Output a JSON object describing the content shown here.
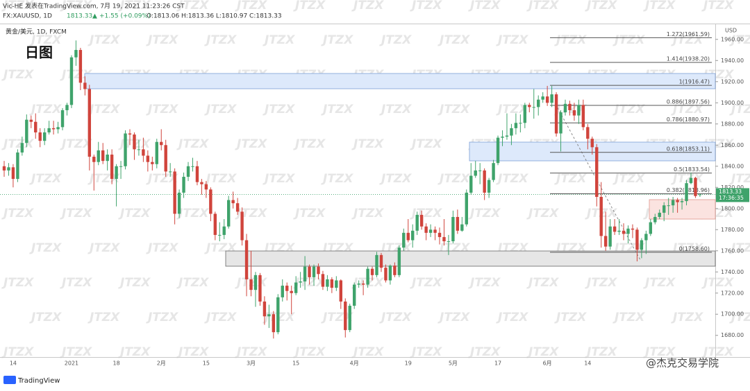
{
  "header": {
    "publisher": "Vic-HE 发表在TradingView.com, 7月 19, 2021 11:23:26 CST",
    "symbol": "FX:XAUUSD, 1D",
    "last": "1813.33",
    "arrow": "▲",
    "change": "+1.55 (+0.09%)",
    "ohlc": "O:1813.06 H:1813.36 L:1810.97 C:1813.33"
  },
  "chart_data": {
    "type": "candlestick",
    "legend_title": "黄金/美元, 1D, FXCM",
    "title": "日图",
    "currency": "USD",
    "watermark": "JTZX",
    "categories": [
      null,
      null,
      "14",
      null,
      null,
      null,
      null,
      null,
      null,
      null,
      null,
      null,
      null,
      null,
      null,
      "2021",
      null,
      null,
      null,
      null,
      null,
      null,
      null,
      null,
      null,
      "18",
      null,
      null,
      null,
      null,
      null,
      null,
      null,
      null,
      null,
      "2月",
      null,
      null,
      null,
      null,
      null,
      null,
      null,
      null,
      null,
      "15",
      null,
      null,
      null,
      null,
      null,
      null,
      null,
      null,
      null,
      "3月",
      null,
      null,
      null,
      null,
      null,
      null,
      null,
      null,
      null,
      "15",
      null,
      null,
      null,
      null,
      null,
      null,
      null,
      null,
      null,
      null,
      null,
      null,
      "4月",
      null,
      null,
      null,
      null,
      null,
      null,
      null,
      null,
      null,
      null,
      null,
      "19",
      null,
      null,
      null,
      null,
      null,
      null,
      null,
      null,
      null,
      "5月",
      null,
      null,
      null,
      null,
      null,
      null,
      null,
      null,
      null,
      "17",
      null,
      null,
      null,
      null,
      null,
      null,
      null,
      null,
      null,
      null,
      "6月",
      null,
      null,
      null,
      null,
      null,
      null,
      null,
      null,
      "14",
      null,
      null,
      null,
      null,
      null,
      null,
      null,
      null,
      null,
      null,
      null,
      null,
      null,
      null,
      null,
      null,
      null,
      null,
      null,
      null,
      null,
      null,
      null,
      null,
      null
    ],
    "open": [
      1840,
      1836,
      1839,
      1828,
      1853,
      1862,
      1884,
      1882,
      1872,
      1864,
      1872,
      1876,
      1875,
      1877,
      1893,
      1898,
      1943,
      1950,
      1919,
      1913,
      1849,
      1844,
      1855,
      1845,
      1851,
      1828,
      1840,
      1840,
      1871,
      1870,
      1856,
      1856,
      1850,
      1844,
      1842,
      1863,
      1860,
      1835,
      1835,
      1795,
      1815,
      1830,
      1840,
      1840,
      1825,
      1823,
      1818,
      1795,
      1775,
      1775,
      1783,
      1808,
      1805,
      1797,
      1770,
      1733,
      1723,
      1737,
      1712,
      1698,
      1700,
      1683,
      1716,
      1727,
      1722,
      1720,
      1730,
      1731,
      1745,
      1735,
      1745,
      1738,
      1726,
      1733,
      1725,
      1732,
      1712,
      1685,
      1708,
      1728,
      1729,
      1728,
      1743,
      1737,
      1756,
      1744,
      1732,
      1746,
      1737,
      1763,
      1777,
      1770,
      1779,
      1794,
      1783,
      1777,
      1780,
      1777,
      1773,
      1769,
      1769,
      1792,
      1779,
      1785,
      1815,
      1831,
      1836,
      1836,
      1815,
      1827,
      1843,
      1867,
      1868,
      1869,
      1876,
      1881,
      1881,
      1898,
      1896,
      1896,
      1903,
      1906,
      1900,
      1908,
      1871,
      1891,
      1899,
      1893,
      1888,
      1898,
      1877,
      1866,
      1858,
      1811,
      1774,
      1764,
      1783,
      1778,
      1779,
      1776,
      1781,
      1780,
      1761,
      1770,
      1776,
      1787,
      1792,
      1796,
      1803,
      1803,
      1808,
      1806,
      1807,
      1824,
      1829,
      1813.06
    ],
    "high": [
      1845,
      1843,
      1842,
      1856,
      1868,
      1889,
      1888,
      1890,
      1876,
      1876,
      1883,
      1883,
      1882,
      1895,
      1900,
      1945,
      1959,
      1952,
      1925,
      1917,
      1851,
      1863,
      1862,
      1856,
      1856,
      1842,
      1845,
      1874,
      1875,
      1872,
      1865,
      1867,
      1855,
      1849,
      1866,
      1875,
      1865,
      1843,
      1838,
      1818,
      1834,
      1844,
      1848,
      1845,
      1828,
      1826,
      1820,
      1797,
      1787,
      1790,
      1812,
      1816,
      1810,
      1801,
      1776,
      1760,
      1740,
      1739,
      1717,
      1709,
      1703,
      1719,
      1733,
      1730,
      1727,
      1736,
      1740,
      1755,
      1747,
      1747,
      1748,
      1741,
      1737,
      1735,
      1736,
      1733,
      1715,
      1710,
      1730,
      1732,
      1732,
      1745,
      1745,
      1759,
      1758,
      1747,
      1747,
      1749,
      1765,
      1781,
      1790,
      1785,
      1797,
      1798,
      1786,
      1785,
      1783,
      1782,
      1790,
      1775,
      1798,
      1799,
      1792,
      1818,
      1843,
      1845,
      1843,
      1838,
      1829,
      1846,
      1869,
      1874,
      1890,
      1880,
      1890,
      1889,
      1900,
      1900,
      1913,
      1907,
      1910,
      1916,
      1916,
      1910,
      1893,
      1903,
      1902,
      1900,
      1903,
      1903,
      1880,
      1868,
      1861,
      1825,
      1797,
      1790,
      1790,
      1790,
      1786,
      1784,
      1785,
      1782,
      1772,
      1779,
      1790,
      1795,
      1799,
      1806,
      1810,
      1811,
      1810,
      1810,
      1827,
      1834,
      1830,
      1813.36
    ],
    "low": [
      1830,
      1831,
      1820,
      1825,
      1850,
      1858,
      1876,
      1866,
      1858,
      1860,
      1870,
      1870,
      1871,
      1874,
      1888,
      1895,
      1935,
      1912,
      1907,
      1836,
      1817,
      1841,
      1842,
      1836,
      1823,
      1802,
      1828,
      1837,
      1860,
      1846,
      1850,
      1844,
      1835,
      1836,
      1838,
      1855,
      1830,
      1830,
      1785,
      1791,
      1810,
      1826,
      1835,
      1822,
      1813,
      1810,
      1788,
      1770,
      1769,
      1771,
      1781,
      1800,
      1794,
      1765,
      1717,
      1717,
      1707,
      1708,
      1690,
      1687,
      1677,
      1681,
      1712,
      1713,
      1700,
      1718,
      1725,
      1723,
      1728,
      1727,
      1733,
      1723,
      1722,
      1720,
      1722,
      1705,
      1678,
      1683,
      1705,
      1725,
      1718,
      1725,
      1732,
      1735,
      1740,
      1730,
      1728,
      1735,
      1735,
      1760,
      1768,
      1763,
      1775,
      1780,
      1770,
      1773,
      1770,
      1766,
      1765,
      1756,
      1767,
      1776,
      1778,
      1783,
      1813,
      1829,
      1823,
      1808,
      1810,
      1825,
      1841,
      1859,
      1865,
      1860,
      1870,
      1872,
      1876,
      1891,
      1885,
      1888,
      1900,
      1897,
      1896,
      1868,
      1854,
      1888,
      1888,
      1883,
      1880,
      1874,
      1856,
      1851,
      1802,
      1763,
      1760,
      1761,
      1775,
      1775,
      1770,
      1767,
      1772,
      1750,
      1753,
      1757,
      1774,
      1785,
      1790,
      1788,
      1794,
      1796,
      1796,
      1799,
      1803,
      1823,
      1810,
      1810.97
    ],
    "close": [
      1836,
      1839,
      1828,
      1853,
      1862,
      1884,
      1882,
      1872,
      1864,
      1872,
      1876,
      1875,
      1877,
      1893,
      1898,
      1943,
      1950,
      1919,
      1913,
      1849,
      1844,
      1855,
      1845,
      1851,
      1828,
      1840,
      1840,
      1871,
      1870,
      1856,
      1856,
      1850,
      1844,
      1842,
      1863,
      1860,
      1835,
      1835,
      1795,
      1815,
      1830,
      1840,
      1840,
      1825,
      1823,
      1818,
      1795,
      1775,
      1775,
      1783,
      1808,
      1805,
      1797,
      1770,
      1733,
      1723,
      1737,
      1712,
      1698,
      1700,
      1683,
      1716,
      1727,
      1722,
      1720,
      1730,
      1731,
      1745,
      1735,
      1745,
      1738,
      1726,
      1733,
      1725,
      1732,
      1712,
      1685,
      1708,
      1728,
      1729,
      1728,
      1743,
      1737,
      1756,
      1744,
      1732,
      1746,
      1737,
      1763,
      1777,
      1770,
      1779,
      1794,
      1783,
      1777,
      1780,
      1777,
      1773,
      1769,
      1769,
      1792,
      1779,
      1785,
      1815,
      1831,
      1836,
      1836,
      1815,
      1827,
      1843,
      1867,
      1868,
      1869,
      1876,
      1881,
      1881,
      1898,
      1896,
      1896,
      1903,
      1906,
      1900,
      1908,
      1871,
      1891,
      1899,
      1893,
      1888,
      1898,
      1877,
      1866,
      1858,
      1811,
      1774,
      1764,
      1783,
      1778,
      1779,
      1776,
      1781,
      1780,
      1761,
      1770,
      1776,
      1787,
      1792,
      1796,
      1803,
      1803,
      1808,
      1806,
      1807,
      1824,
      1829,
      1811.78,
      1813.33
    ],
    "up_color": "#3fa36b",
    "down_color": "#d0443c",
    "ylim": [
      1659.5,
      1974.3
    ],
    "yticks": [
      {
        "value": 1680,
        "label": "1680.00"
      },
      {
        "value": 1700,
        "label": "1700.00"
      },
      {
        "value": 1720,
        "label": "1720.00"
      },
      {
        "value": 1740,
        "label": "1740.00"
      },
      {
        "value": 1760,
        "label": "1760.00"
      },
      {
        "value": 1780,
        "label": "1780.00"
      },
      {
        "value": 1800,
        "label": "1800.00"
      },
      {
        "value": 1820,
        "label": "1820.00"
      },
      {
        "value": 1840,
        "label": "1840.00"
      },
      {
        "value": 1860,
        "label": "1860.00"
      },
      {
        "value": 1880,
        "label": "1880.00"
      },
      {
        "value": 1900,
        "label": "1900.00"
      },
      {
        "value": 1920,
        "label": "1920.00"
      },
      {
        "value": 1940,
        "label": "1940.00"
      },
      {
        "value": 1960,
        "label": "1960.00"
      }
    ],
    "fib_levels": [
      {
        "value": 1961.59,
        "label": "1.272(1961.59)"
      },
      {
        "value": 1938.2,
        "label": "1.414(1938.20)"
      },
      {
        "value": 1916.47,
        "label": "1(1916.47)"
      },
      {
        "value": 1897.56,
        "label": "0.886(1897.56)"
      },
      {
        "value": 1880.97,
        "label": "0.786(1880.97)"
      },
      {
        "value": 1853.11,
        "label": "0.618(1853.11)"
      },
      {
        "value": 1833.54,
        "label": "0.5(1833.54)"
      },
      {
        "value": 1813.96,
        "label": "0.382(1813.96)"
      },
      {
        "value": 1758.6,
        "label": "0(1758.60)"
      }
    ],
    "last_price": {
      "value": 1813.33,
      "label": "1813.33"
    },
    "countdown": "17:36:35"
  },
  "footer": {
    "brand": "TradingView",
    "credit": "@杰克交易学院"
  }
}
